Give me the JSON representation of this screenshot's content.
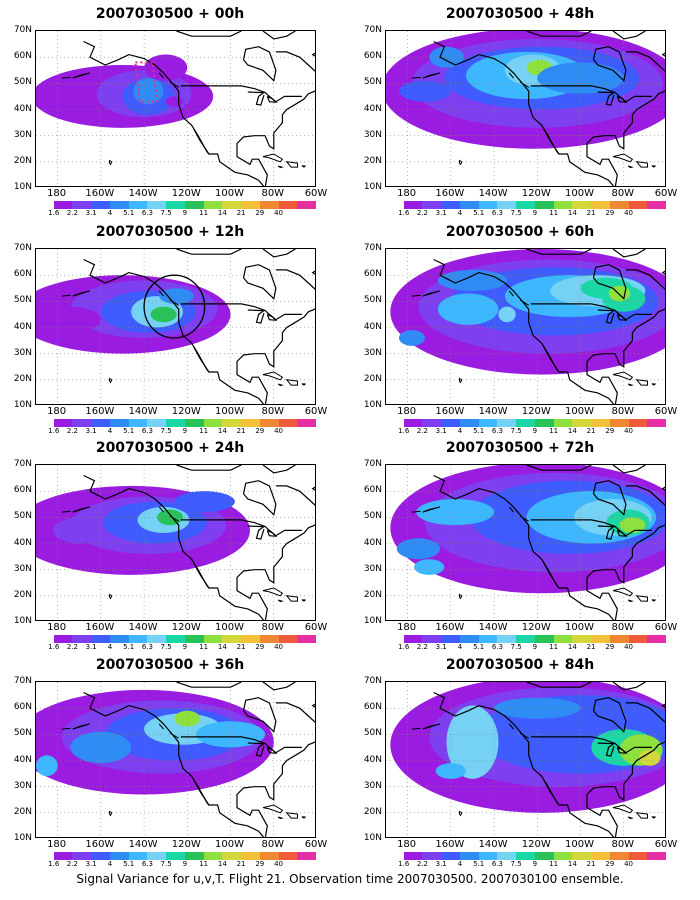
{
  "caption": "Signal Variance for u,v,T. Flight 21. Observation time 2007030500. 2007030100 ensemble.",
  "axes": {
    "lat_labels": [
      "70N",
      "60N",
      "50N",
      "40N",
      "30N",
      "20N",
      "10N"
    ],
    "lon_labels": [
      "180",
      "160W",
      "140W",
      "120W",
      "100W",
      "80W",
      "60W"
    ]
  },
  "colorbar": {
    "ticks": [
      "1.6",
      "2.2",
      "3.1",
      "4",
      "5.1",
      "6.3",
      "7.5",
      "9",
      "11",
      "14",
      "21",
      "29",
      "40"
    ],
    "colors": [
      "#ffffff",
      "#9a1ce0",
      "#7e3ff0",
      "#3e5cff",
      "#2f8cf5",
      "#3db7ff",
      "#76d2f5",
      "#1bd7a6",
      "#29c25a",
      "#8de03d",
      "#d3d83a",
      "#f2c03a",
      "#f08832",
      "#ef5a3a",
      "#e52ea1"
    ]
  },
  "panels": [
    {
      "title": "2007030500 + 00h"
    },
    {
      "title": "2007030500 + 48h"
    },
    {
      "title": "2007030500 + 12h"
    },
    {
      "title": "2007030500 + 60h"
    },
    {
      "title": "2007030500 + 24h"
    },
    {
      "title": "2007030500 + 72h"
    },
    {
      "title": "2007030500 + 36h"
    },
    {
      "title": "2007030500 + 84h"
    }
  ]
}
